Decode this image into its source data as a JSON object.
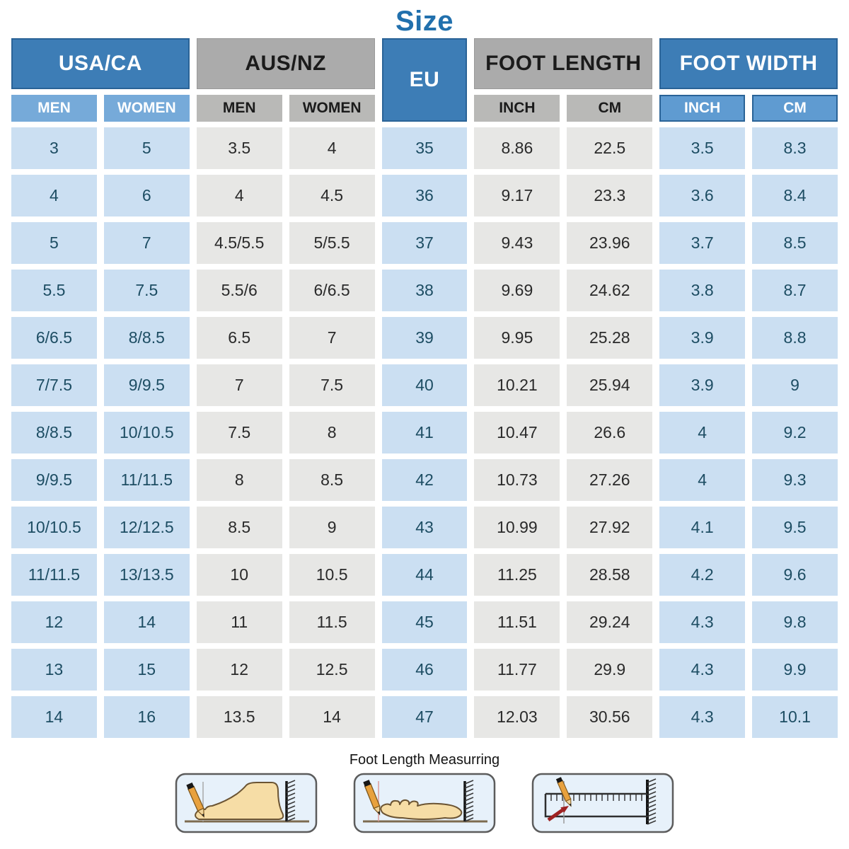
{
  "title": "Size",
  "chart_data": {
    "type": "table",
    "title": "Size",
    "column_groups": [
      {
        "label": "USA/CA",
        "columns": [
          "MEN",
          "WOMEN"
        ],
        "style": "blue"
      },
      {
        "label": "AUS/NZ",
        "columns": [
          "MEN",
          "WOMEN"
        ],
        "style": "gray"
      },
      {
        "label": "EU",
        "columns": [],
        "style": "blue"
      },
      {
        "label": "FOOT LENGTH",
        "columns": [
          "INCH",
          "CM"
        ],
        "style": "gray"
      },
      {
        "label": "FOOT WIDTH",
        "columns": [
          "INCH",
          "CM"
        ],
        "style": "blue"
      }
    ],
    "rows": [
      [
        "3",
        "5",
        "3.5",
        "4",
        "35",
        "8.86",
        "22.5",
        "3.5",
        "8.3"
      ],
      [
        "4",
        "6",
        "4",
        "4.5",
        "36",
        "9.17",
        "23.3",
        "3.6",
        "8.4"
      ],
      [
        "5",
        "7",
        "4.5/5.5",
        "5/5.5",
        "37",
        "9.43",
        "23.96",
        "3.7",
        "8.5"
      ],
      [
        "5.5",
        "7.5",
        "5.5/6",
        "6/6.5",
        "38",
        "9.69",
        "24.62",
        "3.8",
        "8.7"
      ],
      [
        "6/6.5",
        "8/8.5",
        "6.5",
        "7",
        "39",
        "9.95",
        "25.28",
        "3.9",
        "8.8"
      ],
      [
        "7/7.5",
        "9/9.5",
        "7",
        "7.5",
        "40",
        "10.21",
        "25.94",
        "3.9",
        "9"
      ],
      [
        "8/8.5",
        "10/10.5",
        "7.5",
        "8",
        "41",
        "10.47",
        "26.6",
        "4",
        "9.2"
      ],
      [
        "9/9.5",
        "11/11.5",
        "8",
        "8.5",
        "42",
        "10.73",
        "27.26",
        "4",
        "9.3"
      ],
      [
        "10/10.5",
        "12/12.5",
        "8.5",
        "9",
        "43",
        "10.99",
        "27.92",
        "4.1",
        "9.5"
      ],
      [
        "11/11.5",
        "13/13.5",
        "10",
        "10.5",
        "44",
        "11.25",
        "28.58",
        "4.2",
        "9.6"
      ],
      [
        "12",
        "14",
        "11",
        "11.5",
        "45",
        "11.51",
        "29.24",
        "4.3",
        "9.8"
      ],
      [
        "13",
        "15",
        "12",
        "12.5",
        "46",
        "11.77",
        "29.9",
        "4.3",
        "9.9"
      ],
      [
        "14",
        "16",
        "13.5",
        "14",
        "47",
        "12.03",
        "30.56",
        "4.3",
        "10.1"
      ]
    ]
  },
  "footer": {
    "caption": "Foot Length Measurring",
    "illustrations": [
      {
        "name": "foot-side-measure-icon"
      },
      {
        "name": "foot-top-measure-icon"
      },
      {
        "name": "ruler-measure-icon"
      }
    ]
  },
  "colors": {
    "title_text": "#2170ad",
    "header_blue": "#3d7db6",
    "header_blue_border": "#2a6397",
    "subheader_blue": "#76aad9",
    "subheader_blue_dark": "#5f9bd1",
    "header_gray": "#ababab",
    "subheader_gray": "#b9b9b7",
    "cell_blue": "#cbdff2",
    "cell_blue_text": "#1d4d63",
    "cell_gray": "#e7e7e5",
    "cell_gray_text": "#2a2a2a"
  }
}
